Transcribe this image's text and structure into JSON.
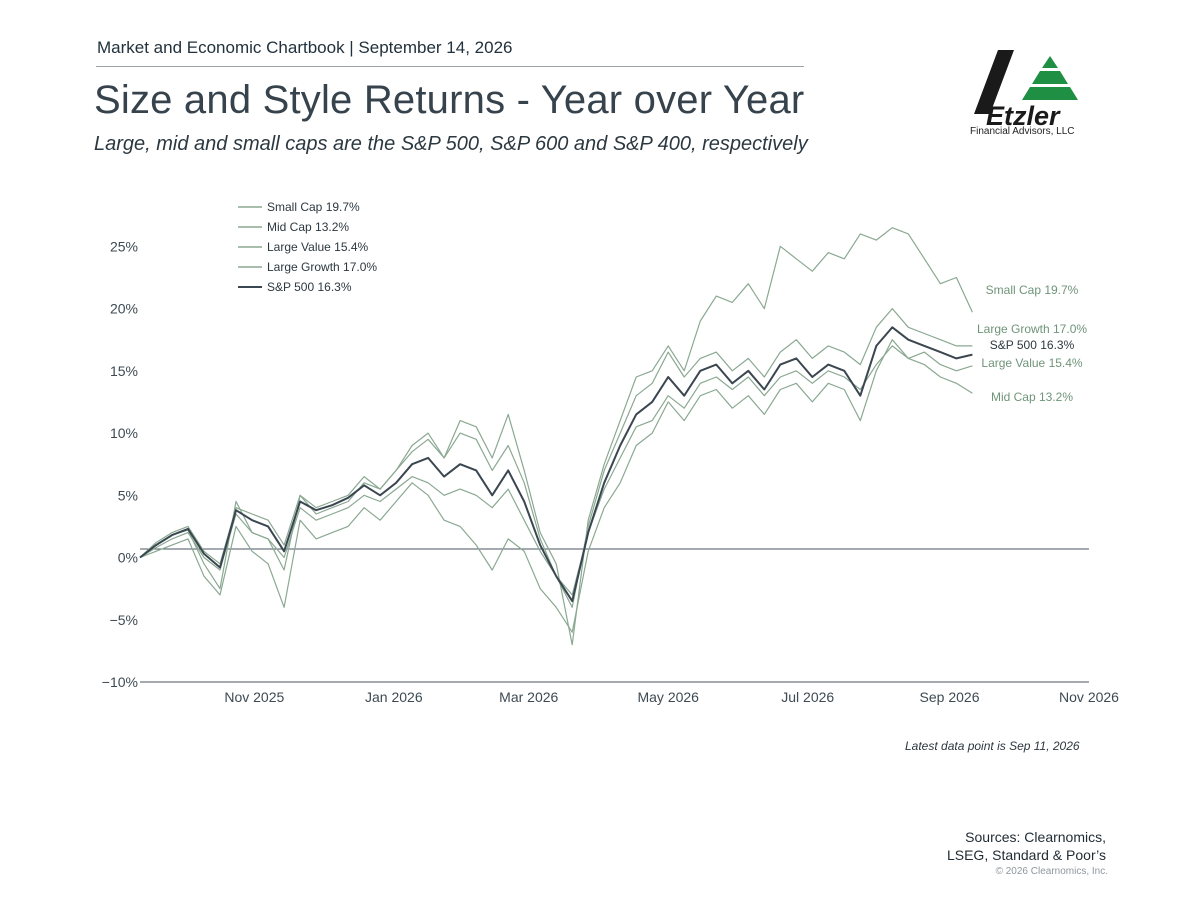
{
  "header": {
    "source_line": "Market and Economic Chartbook | September 14, 2026",
    "title": "Size and Style Returns - Year over Year",
    "subtitle": "Large, mid and small caps are the S&P 500, S&P 600 and S&P 400, respectively"
  },
  "logo": {
    "wordmark": "Etzler",
    "tagline": "Financial Advisors, LLC"
  },
  "colors": {
    "series_green": "#8aa892",
    "sp500": "#3a4650",
    "axis": "#3d4a53",
    "logo_green": "#1f8f43"
  },
  "chart_data": {
    "type": "line",
    "x": [
      "2025-09-12",
      "2025-09-19",
      "2025-09-26",
      "2025-10-03",
      "2025-10-10",
      "2025-10-17",
      "2025-10-24",
      "2025-10-31",
      "2025-11-07",
      "2025-11-14",
      "2025-11-21",
      "2025-11-28",
      "2025-12-05",
      "2025-12-12",
      "2025-12-19",
      "2025-12-26",
      "2026-01-02",
      "2026-01-09",
      "2026-01-16",
      "2026-01-23",
      "2026-01-30",
      "2026-02-06",
      "2026-02-13",
      "2026-02-20",
      "2026-02-27",
      "2026-03-06",
      "2026-03-13",
      "2026-03-20",
      "2026-03-27",
      "2026-04-03",
      "2026-04-10",
      "2026-04-17",
      "2026-04-24",
      "2026-05-01",
      "2026-05-08",
      "2026-05-15",
      "2026-05-22",
      "2026-05-29",
      "2026-06-05",
      "2026-06-12",
      "2026-06-19",
      "2026-06-26",
      "2026-07-03",
      "2026-07-10",
      "2026-07-17",
      "2026-07-24",
      "2026-07-31",
      "2026-08-07",
      "2026-08-14",
      "2026-08-21",
      "2026-08-28",
      "2026-09-04",
      "2026-09-11"
    ],
    "series": [
      {
        "name": "Small Cap 19.7%",
        "values": [
          0.0,
          1.0,
          1.8,
          2.2,
          -0.5,
          -2.5,
          4.5,
          2.0,
          1.5,
          -1.0,
          5.0,
          3.5,
          4.0,
          4.5,
          6.0,
          5.5,
          7.0,
          9.0,
          10.0,
          8.0,
          11.0,
          10.5,
          8.0,
          11.5,
          7.0,
          2.0,
          -0.5,
          -7.0,
          3.0,
          7.5,
          11.0,
          14.5,
          15.0,
          17.0,
          15.0,
          19.0,
          21.0,
          20.5,
          22.0,
          20.0,
          25.0,
          24.0,
          23.0,
          24.5,
          24.0,
          26.0,
          25.5,
          26.5,
          26.0,
          24.0,
          22.0,
          22.5,
          19.7
        ]
      },
      {
        "name": "Mid Cap 13.2%",
        "values": [
          0.0,
          0.5,
          1.0,
          1.5,
          -1.5,
          -3.0,
          2.5,
          0.5,
          -0.5,
          -4.0,
          3.0,
          1.5,
          2.0,
          2.5,
          4.0,
          3.0,
          4.5,
          6.0,
          5.0,
          3.0,
          2.5,
          1.0,
          -1.0,
          1.5,
          0.5,
          -2.5,
          -4.0,
          -6.0,
          0.5,
          4.0,
          6.0,
          9.0,
          10.0,
          12.5,
          11.0,
          13.0,
          13.5,
          12.0,
          13.0,
          11.5,
          13.5,
          14.0,
          12.5,
          14.0,
          13.5,
          11.0,
          15.0,
          17.5,
          16.0,
          15.5,
          14.5,
          14.0,
          13.2
        ]
      },
      {
        "name": "Large Value 15.4%",
        "values": [
          0.0,
          0.8,
          1.5,
          2.0,
          0.0,
          -1.0,
          3.5,
          2.0,
          1.5,
          0.0,
          4.0,
          3.0,
          3.5,
          4.0,
          5.0,
          4.5,
          5.5,
          6.5,
          6.0,
          5.0,
          5.5,
          5.0,
          4.0,
          5.5,
          3.0,
          0.5,
          -1.5,
          -3.0,
          2.0,
          5.5,
          8.0,
          10.5,
          11.0,
          13.0,
          12.0,
          14.0,
          14.5,
          13.5,
          14.5,
          13.0,
          14.5,
          15.0,
          14.0,
          15.0,
          14.5,
          13.5,
          15.5,
          17.0,
          16.0,
          16.5,
          15.5,
          15.0,
          15.4
        ]
      },
      {
        "name": "Large Growth 17.0%",
        "values": [
          0.0,
          1.2,
          2.0,
          2.5,
          0.5,
          -0.5,
          4.0,
          3.5,
          3.0,
          1.0,
          5.0,
          4.0,
          4.5,
          5.0,
          6.5,
          5.5,
          7.0,
          8.5,
          9.5,
          8.0,
          10.0,
          9.5,
          7.0,
          9.0,
          6.0,
          1.5,
          -1.5,
          -4.0,
          2.5,
          7.0,
          10.0,
          13.0,
          14.0,
          16.5,
          14.5,
          16.0,
          16.5,
          15.0,
          16.0,
          14.5,
          16.5,
          17.5,
          16.0,
          17.0,
          16.5,
          15.5,
          18.5,
          20.0,
          18.5,
          18.0,
          17.5,
          17.0,
          17.0
        ]
      },
      {
        "name": "S&P 500 16.3%",
        "values": [
          0.0,
          1.0,
          1.8,
          2.3,
          0.3,
          -0.8,
          3.8,
          3.0,
          2.5,
          0.5,
          4.5,
          3.8,
          4.2,
          4.8,
          5.8,
          5.0,
          6.0,
          7.5,
          8.0,
          6.5,
          7.5,
          7.0,
          5.0,
          7.0,
          4.5,
          1.0,
          -1.5,
          -3.5,
          2.0,
          6.0,
          9.0,
          11.5,
          12.5,
          14.5,
          13.0,
          15.0,
          15.5,
          14.0,
          15.0,
          13.5,
          15.5,
          16.0,
          14.5,
          15.5,
          15.0,
          13.0,
          17.0,
          18.5,
          17.5,
          17.0,
          16.5,
          16.0,
          16.3
        ]
      }
    ],
    "legend": {
      "position": "top-left",
      "entries": [
        "Small Cap 19.7%",
        "Mid Cap 13.2%",
        "Large Value 15.4%",
        "Large Growth 17.0%",
        "S&P 500 16.3%"
      ]
    },
    "end_labels": [
      "Small Cap 19.7%",
      "Large Growth 17.0%",
      "S&P 500 16.3%",
      "Large Value 15.4%",
      "Mid Cap 13.2%"
    ],
    "y_ticks": [
      "25%",
      "20%",
      "15%",
      "10%",
      "5%",
      "0%",
      "−5%",
      "−10%"
    ],
    "y_tick_values": [
      25,
      20,
      15,
      10,
      5,
      0,
      -5,
      -10
    ],
    "x_ticks": [
      "Nov 2025",
      "Jan 2026",
      "Mar 2026",
      "May 2026",
      "Jul 2026",
      "Sep 2026",
      "Nov 2026"
    ],
    "x_tick_dates": [
      "2025-11-01",
      "2026-01-01",
      "2026-03-01",
      "2026-05-01",
      "2026-07-01",
      "2026-09-01",
      "2026-11-01"
    ],
    "xlim": [
      "2025-09-12",
      "2026-11-01"
    ],
    "ylim": [
      -10,
      28
    ],
    "grid": false
  },
  "notes": {
    "latest": "Latest data point is Sep 11, 2026"
  },
  "footer": {
    "sources_line1": "Sources: Clearnomics,",
    "sources_line2": "LSEG, Standard & Poor’s",
    "copyright": "© 2026 Clearnomics, Inc."
  }
}
